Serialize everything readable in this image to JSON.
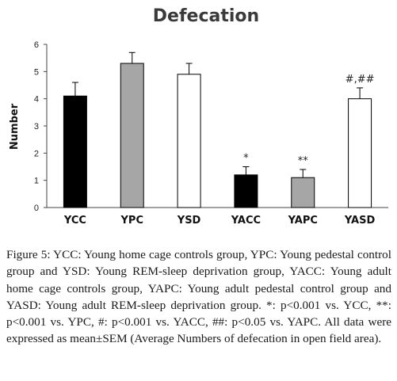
{
  "chart_data": {
    "type": "bar",
    "title": "Defecation",
    "ylabel": "Number",
    "xlabel": "",
    "ylim": [
      0,
      6
    ],
    "yticks": [
      0,
      1,
      2,
      3,
      4,
      5,
      6
    ],
    "grid": false,
    "categories": [
      "YCC",
      "YPC",
      "YSD",
      "YACC",
      "YAPC",
      "YASD"
    ],
    "values": [
      4.1,
      5.3,
      4.9,
      1.2,
      1.1,
      4.0
    ],
    "errors": [
      0.5,
      0.4,
      0.4,
      0.3,
      0.3,
      0.4
    ],
    "fill_colors": [
      "#000000",
      "#a6a6a6",
      "#ffffff",
      "#000000",
      "#a6a6a6",
      "#ffffff"
    ],
    "annotations": [
      "",
      "",
      "",
      "*",
      "**",
      "#,##"
    ]
  },
  "caption": {
    "label": "Figure 5:",
    "text": " YCC: Young home cage controls group, YPC: Young pedestal control group and YSD: Young REM-sleep deprivation group, YACC: Young adult home cage controls group, YAPC: Young adult pedestal control group and YASD: Young adult REM-sleep deprivation group. *: p<0.001 vs. YCC, **: p<0.001 vs. YPC, #: p<0.001 vs. YACC, ##: p<0.05 vs. YAPC. All data were expressed as mean±SEM (Average Numbers of defecation in open field area)."
  }
}
